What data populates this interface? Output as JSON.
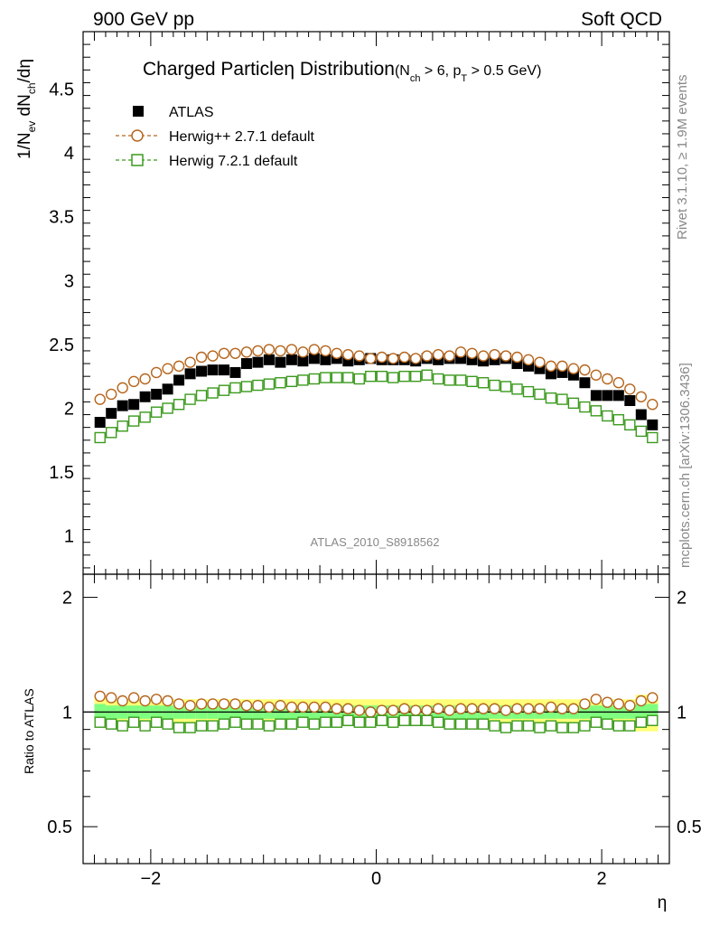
{
  "header": {
    "left": "900 GeV pp",
    "right": "Soft QCD"
  },
  "side_labels": {
    "rivet": "Rivet 3.1.10, ≥ 1.9M events",
    "mcplots": "mcplots.cern.ch [arXiv:1306.3436]"
  },
  "plot_title": {
    "main": "Charged Particleη Distribution",
    "cut_prefix": "(N",
    "cut_sub1": "ch",
    "cut_mid": " > 6, p",
    "cut_sub2": "T",
    "cut_suffix": " > 0.5 GeV)"
  },
  "ylabel_main": {
    "a": "1/N",
    "a_sub": "ev",
    "b": " dN",
    "b_sub": "ch",
    "c": "/dη"
  },
  "analysis_id": "ATLAS_2010_S8918562",
  "chart_data": [
    {
      "type": "scatter",
      "panel": "main",
      "xlabel": "η",
      "xlim": [
        -2.6,
        2.6
      ],
      "ylim": [
        0.7,
        4.95
      ],
      "yticks": [
        1,
        1.5,
        2,
        2.5,
        3,
        3.5,
        4,
        4.5
      ],
      "ytick_labels": [
        "1",
        "1.5",
        "2",
        "2.5",
        "3",
        "3.5",
        "4",
        "4.5"
      ],
      "legend_position": "top-left",
      "x": [
        -2.45,
        -2.35,
        -2.25,
        -2.15,
        -2.05,
        -1.95,
        -1.85,
        -1.75,
        -1.65,
        -1.55,
        -1.45,
        -1.35,
        -1.25,
        -1.15,
        -1.05,
        -0.95,
        -0.85,
        -0.75,
        -0.65,
        -0.55,
        -0.45,
        -0.35,
        -0.25,
        -0.15,
        -0.05,
        0.05,
        0.15,
        0.25,
        0.35,
        0.45,
        0.55,
        0.65,
        0.75,
        0.85,
        0.95,
        1.05,
        1.15,
        1.25,
        1.35,
        1.45,
        1.55,
        1.65,
        1.75,
        1.85,
        1.95,
        2.05,
        2.15,
        2.25,
        2.35,
        2.45
      ],
      "series": [
        {
          "name": "ATLAS",
          "color": "#000000",
          "marker": "filled-square",
          "values": [
            1.89,
            1.96,
            2.02,
            2.03,
            2.09,
            2.11,
            2.15,
            2.22,
            2.27,
            2.29,
            2.3,
            2.3,
            2.28,
            2.35,
            2.36,
            2.38,
            2.36,
            2.38,
            2.37,
            2.39,
            2.38,
            2.39,
            2.37,
            2.38,
            2.39,
            2.38,
            2.38,
            2.38,
            2.37,
            2.39,
            2.38,
            2.39,
            2.39,
            2.38,
            2.37,
            2.38,
            2.39,
            2.35,
            2.33,
            2.31,
            2.27,
            2.28,
            2.26,
            2.2,
            2.1,
            2.1,
            2.1,
            2.06,
            1.95,
            1.87
          ]
        },
        {
          "name": "Herwig++ 2.7.1 default",
          "color": "#b5651d",
          "marker": "open-circle",
          "values": [
            2.07,
            2.11,
            2.16,
            2.21,
            2.23,
            2.28,
            2.31,
            2.33,
            2.36,
            2.4,
            2.41,
            2.43,
            2.43,
            2.44,
            2.45,
            2.46,
            2.45,
            2.46,
            2.44,
            2.46,
            2.45,
            2.43,
            2.42,
            2.41,
            2.39,
            2.4,
            2.39,
            2.4,
            2.39,
            2.41,
            2.42,
            2.41,
            2.44,
            2.43,
            2.41,
            2.42,
            2.41,
            2.4,
            2.38,
            2.36,
            2.33,
            2.33,
            2.31,
            2.3,
            2.26,
            2.23,
            2.2,
            2.15,
            2.09,
            2.03
          ]
        },
        {
          "name": "Herwig 7.2.1 default",
          "color": "#3c9a1e",
          "marker": "open-square",
          "values": [
            1.77,
            1.81,
            1.86,
            1.9,
            1.93,
            1.97,
            2.0,
            2.03,
            2.07,
            2.1,
            2.12,
            2.14,
            2.16,
            2.17,
            2.18,
            2.19,
            2.2,
            2.21,
            2.22,
            2.23,
            2.24,
            2.24,
            2.24,
            2.23,
            2.25,
            2.25,
            2.24,
            2.25,
            2.25,
            2.26,
            2.23,
            2.22,
            2.22,
            2.21,
            2.2,
            2.18,
            2.17,
            2.15,
            2.13,
            2.11,
            2.08,
            2.07,
            2.04,
            2.01,
            1.98,
            1.94,
            1.91,
            1.87,
            1.82,
            1.77
          ]
        }
      ]
    },
    {
      "type": "scatter",
      "panel": "ratio",
      "ylabel": "Ratio to ATLAS",
      "xlabel": "η",
      "xlim": [
        -2.6,
        2.6
      ],
      "ylim": [
        0.4,
        2.3
      ],
      "log_y": true,
      "yticks": [
        0.5,
        1,
        2
      ],
      "ytick_labels": [
        "0.5",
        "1",
        "2"
      ],
      "xticks": [
        -2,
        0,
        2
      ],
      "xtick_labels": [
        "−2",
        "0",
        "2"
      ],
      "reference_line": 1,
      "x": [
        -2.45,
        -2.35,
        -2.25,
        -2.15,
        -2.05,
        -1.95,
        -1.85,
        -1.75,
        -1.65,
        -1.55,
        -1.45,
        -1.35,
        -1.25,
        -1.15,
        -1.05,
        -0.95,
        -0.85,
        -0.75,
        -0.65,
        -0.55,
        -0.45,
        -0.35,
        -0.25,
        -0.15,
        -0.05,
        0.05,
        0.15,
        0.25,
        0.35,
        0.45,
        0.55,
        0.65,
        0.75,
        0.85,
        0.95,
        1.05,
        1.15,
        1.25,
        1.35,
        1.45,
        1.55,
        1.65,
        1.75,
        1.85,
        1.95,
        2.05,
        2.15,
        2.25,
        2.35,
        2.45
      ],
      "bands": {
        "stat_color": "#7fff7f",
        "total_color": "#ffff77",
        "stat": [
          0.05,
          0.04,
          0.04,
          0.04,
          0.04,
          0.04,
          0.04,
          0.04,
          0.04,
          0.04,
          0.04,
          0.04,
          0.04,
          0.04,
          0.04,
          0.04,
          0.04,
          0.04,
          0.04,
          0.04,
          0.04,
          0.04,
          0.04,
          0.04,
          0.04,
          0.04,
          0.04,
          0.04,
          0.04,
          0.04,
          0.04,
          0.04,
          0.04,
          0.04,
          0.04,
          0.04,
          0.04,
          0.04,
          0.04,
          0.04,
          0.04,
          0.04,
          0.04,
          0.04,
          0.04,
          0.04,
          0.04,
          0.04,
          0.05,
          0.05
        ],
        "total": [
          0.09,
          0.08,
          0.08,
          0.08,
          0.08,
          0.08,
          0.08,
          0.08,
          0.08,
          0.08,
          0.08,
          0.08,
          0.08,
          0.08,
          0.08,
          0.08,
          0.08,
          0.08,
          0.08,
          0.08,
          0.08,
          0.08,
          0.08,
          0.08,
          0.08,
          0.08,
          0.08,
          0.08,
          0.08,
          0.08,
          0.08,
          0.08,
          0.08,
          0.08,
          0.08,
          0.08,
          0.08,
          0.08,
          0.08,
          0.08,
          0.08,
          0.08,
          0.08,
          0.08,
          0.08,
          0.08,
          0.08,
          0.08,
          0.11,
          0.11
        ]
      },
      "series": [
        {
          "name": "Herwig++ 2.7.1 default",
          "color": "#b5651d",
          "marker": "open-circle",
          "values": [
            1.1,
            1.09,
            1.07,
            1.09,
            1.07,
            1.08,
            1.07,
            1.05,
            1.04,
            1.05,
            1.05,
            1.05,
            1.05,
            1.04,
            1.04,
            1.03,
            1.04,
            1.03,
            1.03,
            1.03,
            1.03,
            1.02,
            1.02,
            1.01,
            1.0,
            1.01,
            1.01,
            1.02,
            1.01,
            1.01,
            1.02,
            1.01,
            1.02,
            1.02,
            1.02,
            1.02,
            1.01,
            1.02,
            1.02,
            1.02,
            1.03,
            1.02,
            1.02,
            1.05,
            1.08,
            1.06,
            1.05,
            1.04,
            1.07,
            1.09
          ]
        },
        {
          "name": "Herwig 7.2.1 default",
          "color": "#3c9a1e",
          "marker": "open-square",
          "values": [
            0.94,
            0.93,
            0.92,
            0.94,
            0.92,
            0.94,
            0.93,
            0.91,
            0.91,
            0.92,
            0.92,
            0.93,
            0.94,
            0.93,
            0.93,
            0.92,
            0.93,
            0.93,
            0.94,
            0.93,
            0.94,
            0.94,
            0.95,
            0.94,
            0.94,
            0.95,
            0.94,
            0.95,
            0.95,
            0.95,
            0.94,
            0.93,
            0.93,
            0.93,
            0.93,
            0.92,
            0.91,
            0.92,
            0.92,
            0.91,
            0.92,
            0.91,
            0.91,
            0.92,
            0.94,
            0.93,
            0.92,
            0.92,
            0.94,
            0.95
          ]
        }
      ]
    }
  ]
}
